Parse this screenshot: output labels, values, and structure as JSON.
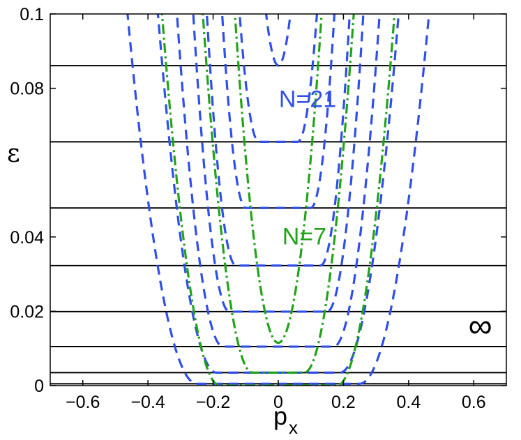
{
  "chart_data": {
    "type": "line",
    "xlabel": "p",
    "xlabel_sub": "x",
    "ylabel": "ε",
    "xlim": [
      -0.7,
      0.7
    ],
    "ylim": [
      0,
      0.1
    ],
    "xticks": [
      -0.6,
      -0.4,
      -0.2,
      0,
      0.2,
      0.4,
      0.6
    ],
    "xtick_labels": [
      "−0.6",
      "−0.4",
      "−0.2",
      "0",
      "0.2",
      "0.4",
      "0.6"
    ],
    "yticks": [
      0,
      0.02,
      0.04,
      0.08,
      0.1
    ],
    "ytick_labels": [
      "0",
      "0.02",
      "0.04",
      "0.08",
      "0.1"
    ],
    "colors": {
      "n21": "#2f4fe8",
      "n7": "#22a31a",
      "flat": "#000000"
    },
    "annotations": [
      {
        "text": "N=21",
        "color": "#2f4fe8",
        "x": 0.09,
        "y": 0.075
      },
      {
        "text": "N=7",
        "color": "#22a31a",
        "x": 0.08,
        "y": 0.038
      },
      {
        "text": "∞",
        "color": "#000000",
        "x": 0.62,
        "y": 0.013
      }
    ],
    "series": [
      {
        "style": "solid-black",
        "levels": [
          0.0005,
          0.0035,
          0.0105,
          0.0199,
          0.0323,
          0.0478,
          0.0656,
          0.0861
        ]
      },
      {
        "style": "dashed-blue",
        "curves": [
          {
            "min": 0.0005,
            "flat_half_width": 0.25,
            "k": 2.2,
            "n": 2
          },
          {
            "min": 0.0035,
            "flat_half_width": 0.19,
            "k": 3.0,
            "n": 2
          },
          {
            "min": 0.0105,
            "flat_half_width": 0.17,
            "k": 4.5,
            "n": 2
          },
          {
            "min": 0.0199,
            "flat_half_width": 0.15,
            "k": 6.5,
            "n": 2
          },
          {
            "min": 0.0323,
            "flat_half_width": 0.13,
            "k": 8.5,
            "n": 2
          },
          {
            "min": 0.0478,
            "flat_half_width": 0.1,
            "k": 10.0,
            "n": 2
          },
          {
            "min": 0.0656,
            "flat_half_width": 0.06,
            "k": 10.0,
            "n": 2
          },
          {
            "min": 0.0861,
            "flat_half_width": 0.0,
            "k": 10.0,
            "n": 2
          }
        ]
      },
      {
        "style": "dashdot-green",
        "curves": [
          {
            "min": 0.0,
            "flat_half_width": 0.18,
            "k": 3.2,
            "n": 2
          },
          {
            "min": 0.0035,
            "flat_half_width": 0.08,
            "k": 4.2,
            "n": 2
          },
          {
            "min": 0.0115,
            "flat_half_width": 0.0,
            "k": 5.0,
            "n": 2
          }
        ]
      }
    ]
  }
}
